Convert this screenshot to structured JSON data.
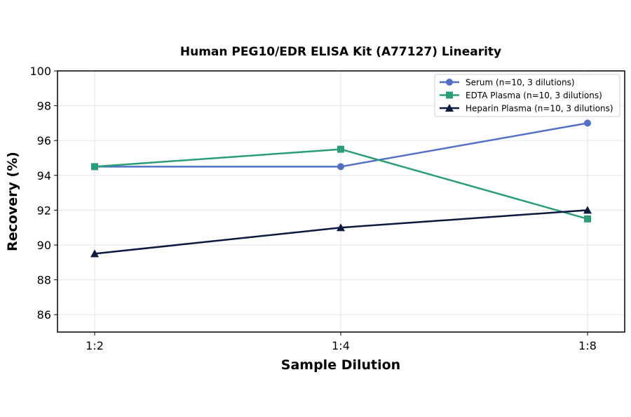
{
  "chart_data": {
    "type": "line",
    "title": "Human PEG10/EDR ELISA Kit (A77127) Linearity",
    "xlabel": "Sample Dilution",
    "ylabel": "Recovery (%)",
    "categories": [
      "1:2",
      "1:4",
      "1:8"
    ],
    "ylim": [
      85,
      100
    ],
    "yticks": [
      86,
      88,
      90,
      92,
      94,
      96,
      98,
      100
    ],
    "grid": true,
    "legend_position": "top-right",
    "series": [
      {
        "name": "Serum (n=10, 3 dilutions)",
        "values": [
          94.5,
          94.5,
          97.0
        ],
        "color": "#5470c6",
        "marker": "circle"
      },
      {
        "name": "EDTA Plasma (n=10, 3 dilutions)",
        "values": [
          94.5,
          95.5,
          91.5
        ],
        "color": "#2a9d78",
        "marker": "square"
      },
      {
        "name": "Heparin Plasma (n=10, 3 dilutions)",
        "values": [
          89.5,
          91.0,
          92.0
        ],
        "color": "#0b1a3e",
        "marker": "triangle"
      }
    ]
  }
}
